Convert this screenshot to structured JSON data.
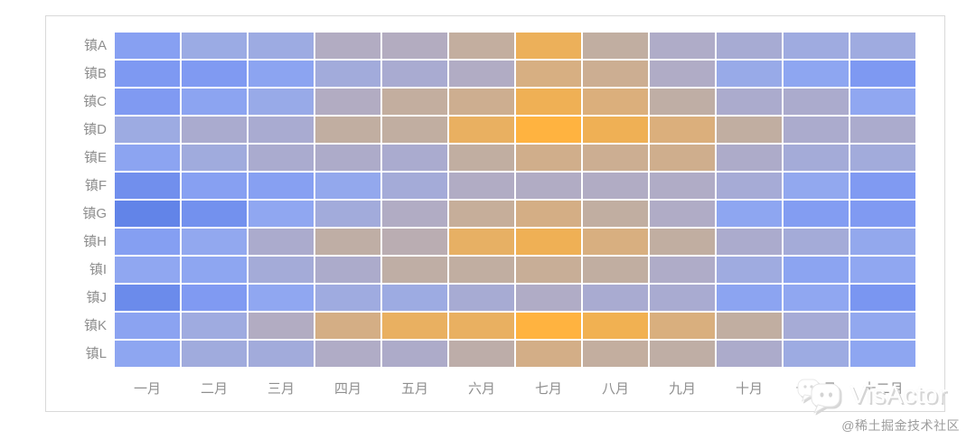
{
  "watermark": {
    "text": "VisActor"
  },
  "credit": {
    "text": "@稀土掘金技术社区"
  },
  "colors": {
    "background": "#ffffff",
    "card_border": "#d9d9d9",
    "axis_label": "#8f8f8f",
    "cell_gap": "#ffffff",
    "coldest": "#6284E8",
    "middle": "#B4ACBE",
    "hottest": "#FFB340"
  },
  "chart_data": {
    "type": "heatmap",
    "title": "",
    "xlabel": "",
    "ylabel": "",
    "legend": "none",
    "grid": "white 2px gaps between cells",
    "x_categories": [
      "一月",
      "二月",
      "三月",
      "四月",
      "五月",
      "六月",
      "七月",
      "八月",
      "九月",
      "十月",
      "十一月",
      "十二月"
    ],
    "y_categories": [
      "镇A",
      "镇B",
      "镇C",
      "镇D",
      "镇E",
      "镇F",
      "镇G",
      "镇H",
      "镇I",
      "镇J",
      "镇K",
      "镇L"
    ],
    "value_range": [
      0,
      100
    ],
    "value_note": "normalized heat intensity estimated from cell color (0 = deepest blue, 100 = brightest orange); no numeric legend shown in chart",
    "values": [
      [
        20,
        32,
        33,
        48,
        49,
        58,
        84,
        57,
        45,
        39,
        34,
        34
      ],
      [
        15,
        16,
        23,
        36,
        40,
        47,
        71,
        63,
        46,
        30,
        24,
        15
      ],
      [
        16,
        23,
        30,
        48,
        58,
        64,
        86,
        74,
        56,
        42,
        42,
        25
      ],
      [
        33,
        41,
        40,
        57,
        57,
        82,
        100,
        86,
        74,
        57,
        42,
        42
      ],
      [
        23,
        35,
        41,
        44,
        41,
        57,
        66,
        63,
        65,
        44,
        37,
        36
      ],
      [
        8,
        20,
        20,
        27,
        37,
        47,
        47,
        47,
        46,
        38,
        26,
        16
      ],
      [
        0,
        9,
        25,
        36,
        47,
        60,
        69,
        57,
        46,
        24,
        18,
        16
      ],
      [
        19,
        26,
        42,
        56,
        53,
        81,
        86,
        72,
        57,
        42,
        37,
        27
      ],
      [
        25,
        24,
        37,
        43,
        56,
        57,
        61,
        57,
        45,
        34,
        23,
        25
      ],
      [
        5,
        16,
        25,
        34,
        33,
        39,
        46,
        40,
        40,
        23,
        25,
        13
      ],
      [
        22,
        34,
        48,
        69,
        82,
        82,
        100,
        88,
        73,
        57,
        38,
        26
      ],
      [
        24,
        35,
        36,
        46,
        44,
        55,
        68,
        58,
        56,
        43,
        33,
        24
      ]
    ],
    "color_scale": {
      "stops": [
        {
          "v": 0,
          "c": "#6284E8"
        },
        {
          "v": 15,
          "c": "#7E99F2"
        },
        {
          "v": 25,
          "c": "#90A7F1"
        },
        {
          "v": 33,
          "c": "#9DABE2"
        },
        {
          "v": 40,
          "c": "#A9ABD1"
        },
        {
          "v": 50,
          "c": "#B4ACBE"
        },
        {
          "v": 57,
          "c": "#C1AEA1"
        },
        {
          "v": 65,
          "c": "#CFAE8D"
        },
        {
          "v": 75,
          "c": "#DCAF7A"
        },
        {
          "v": 85,
          "c": "#EEB056"
        },
        {
          "v": 100,
          "c": "#FFB340"
        }
      ]
    }
  }
}
